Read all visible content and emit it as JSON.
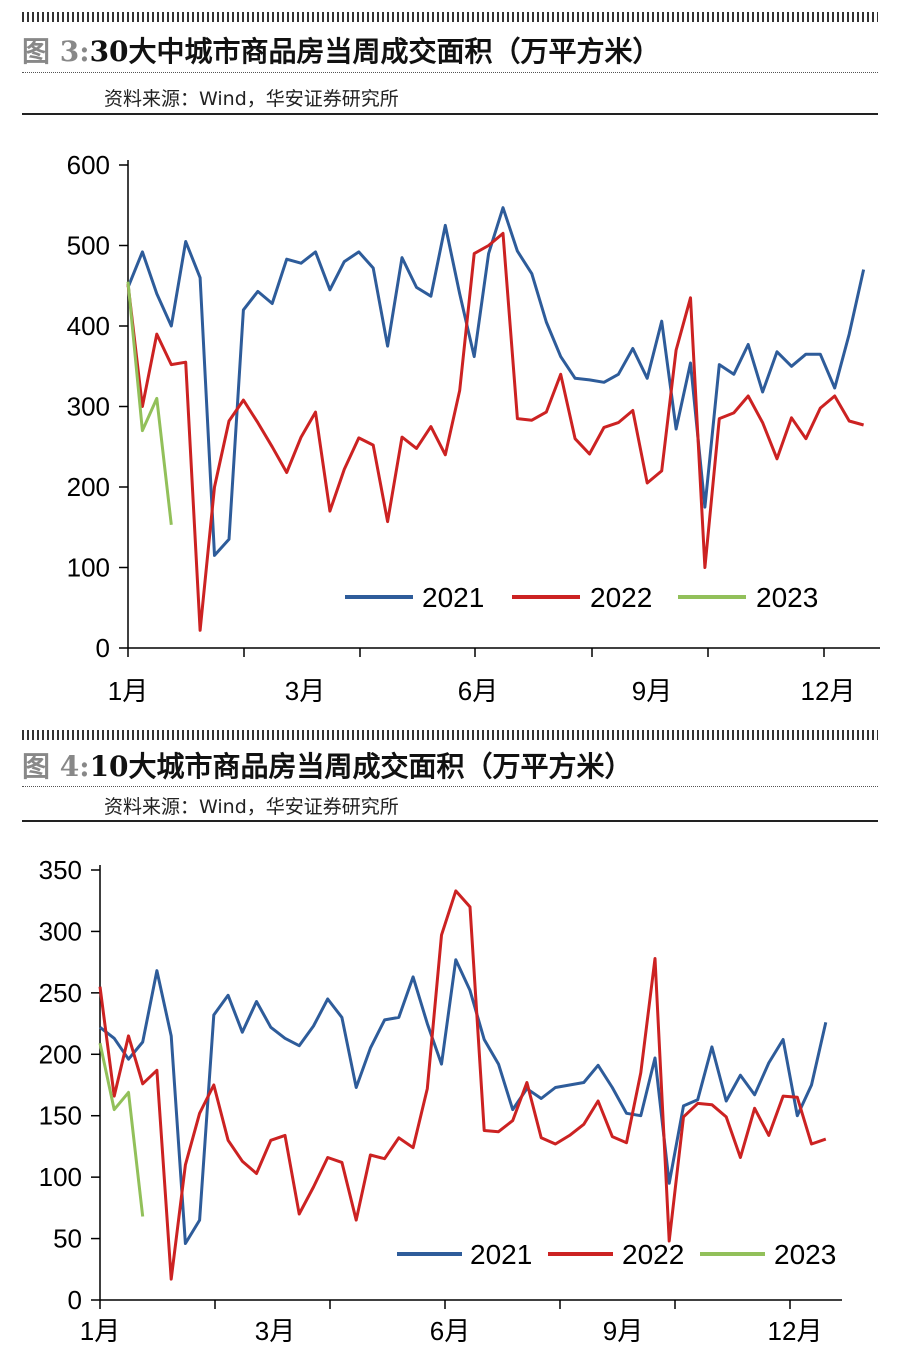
{
  "figures": [
    {
      "fig_label": "图 3:",
      "title": "30大中城市商品房当周成交面积（万平方米）",
      "source": "资料来源：Wind，华安证券研究所"
    },
    {
      "fig_label": "图 4:",
      "title": "10大城市商品房当周成交面积（万平方米）",
      "source": "资料来源：Wind，华安证券研究所"
    }
  ],
  "colors": {
    "2021": "#2e5c9a",
    "2022": "#cc2222",
    "2023": "#92c05a"
  },
  "chart_data": [
    {
      "type": "line",
      "x_label_ticks": [
        "1月",
        "3月",
        "6月",
        "9月",
        "12月"
      ],
      "y_ticks": [
        0,
        100,
        200,
        300,
        400,
        500,
        600
      ],
      "ylim": [
        0,
        600
      ],
      "xlim": [
        1,
        53
      ],
      "legend": [
        "2021",
        "2022",
        "2023"
      ],
      "legend_position": "bottom-right",
      "series": [
        {
          "name": "2021",
          "color": "#2e5c9a",
          "values": [
            448,
            492,
            440,
            400,
            505,
            460,
            115,
            135,
            420,
            443,
            428,
            483,
            478,
            492,
            445,
            480,
            492,
            472,
            375,
            485,
            448,
            437,
            525,
            440,
            362,
            490,
            547,
            493,
            465,
            405,
            362,
            335,
            333,
            330,
            340,
            372,
            335,
            406,
            272,
            354,
            175,
            352,
            340,
            377,
            318,
            368,
            350,
            365,
            365,
            323,
            390,
            470
          ]
        },
        {
          "name": "2022",
          "color": "#cc2222",
          "values": [
            452,
            300,
            390,
            352,
            355,
            22,
            200,
            282,
            308,
            280,
            250,
            218,
            262,
            293,
            170,
            222,
            261,
            252,
            157,
            262,
            248,
            275,
            240,
            320,
            490,
            500,
            515,
            285,
            283,
            293,
            340,
            260,
            241,
            274,
            280,
            295,
            205,
            220,
            370,
            435,
            100,
            285,
            292,
            313,
            280,
            235,
            286,
            260,
            298,
            313,
            282,
            277
          ]
        },
        {
          "name": "2023",
          "color": "#92c05a",
          "values": [
            455,
            270,
            310,
            153
          ]
        }
      ]
    },
    {
      "type": "line",
      "x_label_ticks": [
        "1月",
        "3月",
        "6月",
        "9月",
        "12月"
      ],
      "y_ticks": [
        0,
        50,
        100,
        150,
        200,
        250,
        300,
        350
      ],
      "ylim": [
        0,
        350
      ],
      "xlim": [
        1,
        53
      ],
      "legend": [
        "2021",
        "2022",
        "2023"
      ],
      "legend_position": "bottom-right",
      "series": [
        {
          "name": "2021",
          "color": "#2e5c9a",
          "values": [
            222,
            213,
            196,
            210,
            268,
            215,
            46,
            65,
            232,
            248,
            218,
            243,
            222,
            213,
            207,
            223,
            245,
            230,
            173,
            205,
            228,
            230,
            263,
            225,
            192,
            277,
            252,
            212,
            192,
            155,
            172,
            164,
            173,
            175,
            177,
            191,
            173,
            152,
            150,
            197,
            95,
            158,
            163,
            206,
            162,
            183,
            167,
            193,
            212,
            150,
            175,
            226
          ]
        },
        {
          "name": "2022",
          "color": "#cc2222",
          "values": [
            255,
            166,
            215,
            176,
            187,
            17,
            110,
            152,
            175,
            130,
            113,
            103,
            130,
            134,
            70,
            92,
            116,
            112,
            65,
            118,
            115,
            132,
            124,
            172,
            297,
            333,
            320,
            138,
            137,
            146,
            177,
            132,
            127,
            134,
            143,
            162,
            133,
            128,
            185,
            278,
            48,
            149,
            160,
            159,
            149,
            116,
            156,
            134,
            166,
            165,
            127,
            131
          ]
        },
        {
          "name": "2023",
          "color": "#92c05a",
          "values": [
            209,
            155,
            169,
            68
          ]
        }
      ]
    }
  ]
}
